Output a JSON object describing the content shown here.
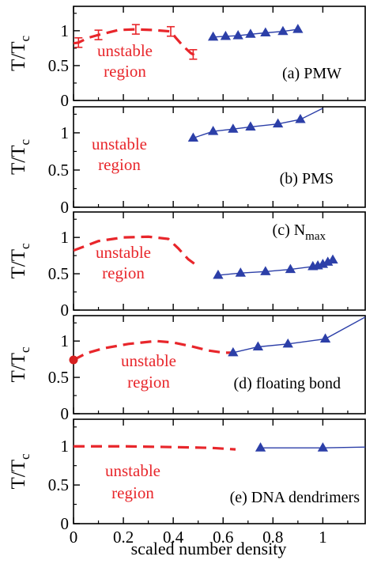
{
  "figure": {
    "xlabel": "scaled number density",
    "xticks": [
      "0",
      "0.2",
      "0.4",
      "0.6",
      "0.8",
      "1"
    ],
    "xlim": [
      0,
      1.17
    ],
    "ylim": [
      0,
      1.35
    ],
    "yticks": [
      "0",
      "0.5",
      "1"
    ],
    "colors": {
      "unstable": "#e8262b",
      "simulation": "#2c3fa8",
      "axis": "#000000"
    }
  },
  "chart_data": [
    {
      "type": "line",
      "panel_label": "(a)  PMW",
      "ylabel": "T/Tc",
      "region_label": [
        "unstable",
        "region"
      ],
      "xlim": [
        0,
        1.17
      ],
      "ylim": [
        0,
        1.35
      ],
      "series": [
        {
          "x": [
            0.0,
            0.02,
            0.06,
            0.1,
            0.18,
            0.25,
            0.32,
            0.39,
            0.41,
            0.44,
            0.47,
            0.5
          ],
          "y": [
            0.82,
            0.83,
            0.9,
            0.94,
            1.01,
            1.02,
            1.01,
            0.99,
            0.9,
            0.78,
            0.68,
            0.62
          ],
          "errorbars_x": [
            0.02,
            0.1,
            0.25,
            0.39,
            0.48
          ]
        },
        {
          "x": [
            0.56,
            0.61,
            0.66,
            0.71,
            0.77,
            0.84,
            0.9
          ],
          "y": [
            0.91,
            0.92,
            0.93,
            0.95,
            0.97,
            0.99,
            1.02
          ]
        }
      ]
    },
    {
      "type": "line",
      "panel_label": "(b)   PMS",
      "ylabel": "T/Tc",
      "region_label": [
        "unstable",
        "region"
      ],
      "xlim": [
        0,
        1.17
      ],
      "ylim": [
        0,
        1.35
      ],
      "series": [
        {
          "x": [
            0.48,
            0.56,
            0.64,
            0.71,
            0.82,
            0.91,
            1.0
          ],
          "y": [
            0.93,
            1.02,
            1.05,
            1.08,
            1.12,
            1.18,
            1.33
          ]
        }
      ]
    },
    {
      "type": "line",
      "panel_label": "(c) N",
      "panel_label_sub": "max",
      "ylabel": "T/Tc",
      "region_label": [
        "unstable",
        "region"
      ],
      "xlim": [
        0,
        1.17
      ],
      "ylim": [
        0,
        1.35
      ],
      "series": [
        {
          "x": [
            0.0,
            0.1,
            0.2,
            0.3,
            0.38,
            0.42,
            0.46,
            0.5
          ],
          "y": [
            0.82,
            0.95,
            1.0,
            1.01,
            0.98,
            0.85,
            0.7,
            0.6
          ]
        },
        {
          "x": [
            0.58,
            0.67,
            0.77,
            0.87,
            0.96,
            0.98,
            1.0,
            1.02,
            1.04
          ],
          "y": [
            0.48,
            0.51,
            0.53,
            0.56,
            0.6,
            0.61,
            0.63,
            0.66,
            0.69
          ]
        }
      ]
    },
    {
      "type": "line",
      "panel_label": "(d) floating bond",
      "ylabel": "T/Tc",
      "region_label": [
        "unstable",
        "region"
      ],
      "xlim": [
        0,
        1.17
      ],
      "ylim": [
        0,
        1.35
      ],
      "series": [
        {
          "x": [
            0.0,
            0.05,
            0.12,
            0.22,
            0.33,
            0.4,
            0.47,
            0.54,
            0.6,
            0.64
          ],
          "y": [
            0.74,
            0.83,
            0.9,
            0.96,
            1.0,
            0.98,
            0.93,
            0.87,
            0.84,
            0.84
          ]
        },
        {
          "x": [
            0.64,
            0.74,
            0.86,
            1.01,
            1.17
          ],
          "y": [
            0.84,
            0.92,
            0.96,
            1.03,
            1.33
          ]
        }
      ]
    },
    {
      "type": "line",
      "panel_label": "(e)  DNA dendrimers",
      "ylabel": "T/Tc",
      "region_label": [
        "unstable",
        "region"
      ],
      "xlim": [
        0,
        1.17
      ],
      "ylim": [
        0,
        1.35
      ],
      "series": [
        {
          "x": [
            0.0,
            0.2,
            0.4,
            0.55,
            0.65
          ],
          "y": [
            1.0,
            1.0,
            0.99,
            0.98,
            0.96
          ]
        },
        {
          "x": [
            0.75,
            1.0,
            1.17
          ],
          "y": [
            0.98,
            0.98,
            0.99
          ]
        }
      ]
    }
  ]
}
